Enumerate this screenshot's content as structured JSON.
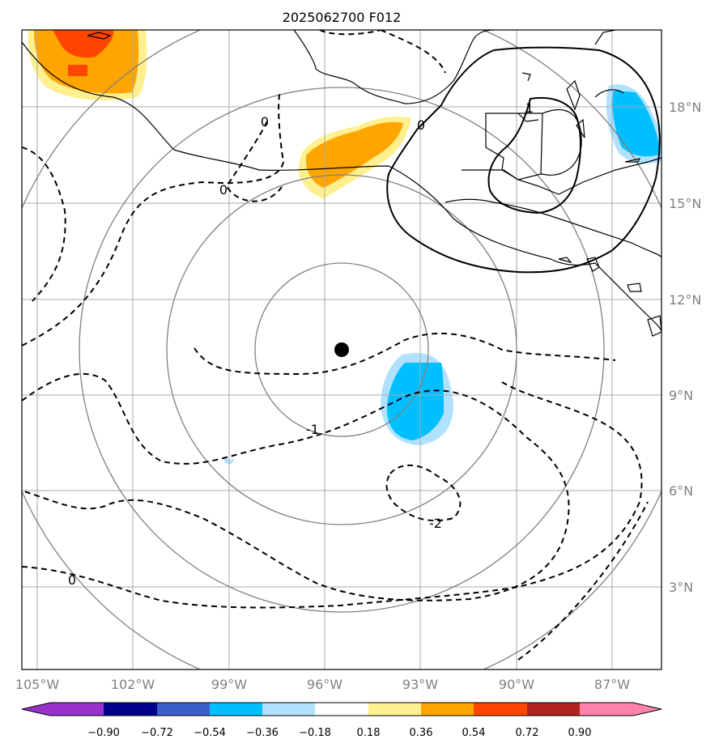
{
  "title": "2025062700 F012",
  "longitude_ticks": [
    "105°W",
    "102°W",
    "99°W",
    "96°W",
    "93°W",
    "90°W",
    "87°W"
  ],
  "latitude_ticks": [
    "18°N",
    "15°N",
    "12°N",
    "9°N",
    "6°N",
    "3°N"
  ],
  "contour_labels": {
    "zero_upper_left": "0",
    "zero_north": "0",
    "zero_northeast": "0",
    "one_east": "1",
    "neg_one": "-1",
    "neg_two": "-2",
    "zero_southwest": "0"
  },
  "colorbar": {
    "colors": [
      "#9932cc",
      "#00008b",
      "#3a5fcd",
      "#00bfff",
      "#b0e2ff",
      "#ffffff",
      "#fff08f",
      "#ffa500",
      "#ff4500",
      "#b22222",
      "#ff82ab"
    ],
    "tick_labels": [
      "−0.90",
      "−0.72",
      "−0.54",
      "−0.36",
      "−0.18",
      "0.18",
      "0.36",
      "0.54",
      "0.72",
      "0.90"
    ]
  },
  "colors": {
    "grid": "#a9a9a9",
    "range_rings": "#808080",
    "coast": "#000000"
  }
}
